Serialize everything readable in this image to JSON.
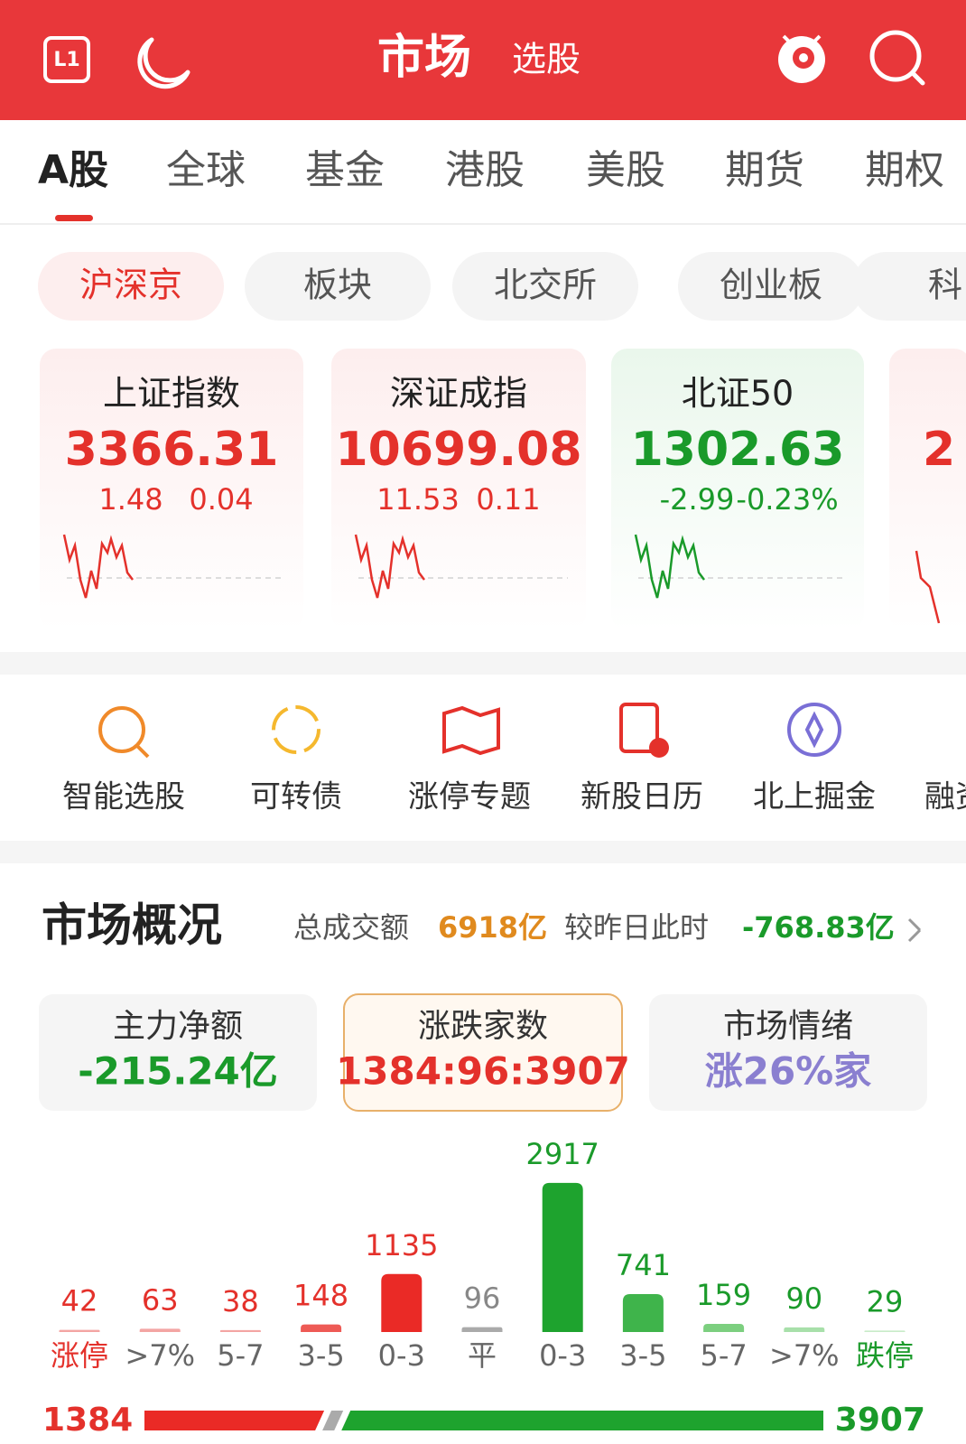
{
  "header": {
    "icon_label": "L1",
    "title": "市场",
    "subtitle": "选股"
  },
  "tabs": [
    "A股",
    "全球",
    "基金",
    "港股",
    "美股",
    "期货",
    "期权"
  ],
  "subtabs": [
    "沪深京",
    "板块",
    "北交所",
    "创业板",
    "科"
  ],
  "indices": [
    {
      "name": "上证指数",
      "value": "3366.31",
      "change": "1.48",
      "pct": "0.04"
    },
    {
      "name": "深证成指",
      "value": "10699.08",
      "change": "11.53",
      "pct": "0.11"
    },
    {
      "name": "北证50",
      "value": "1302.63",
      "change": "-2.99",
      "pct": "-0.23%"
    },
    {
      "value": "2"
    }
  ],
  "shortcuts": [
    "智能选股",
    "可转债",
    "涨停专题",
    "新股日历",
    "北上掘金",
    "融资"
  ],
  "overview": {
    "title": "市场概况",
    "turnover_label": "总成交额",
    "turnover": "6918亿",
    "compare_label": "较昨日此时",
    "compare": "-768.83亿",
    "cards": [
      {
        "title": "主力净额",
        "value": "-215.24亿"
      },
      {
        "title": "涨跌家数",
        "value": "1384:96:3907"
      },
      {
        "title": "市场情绪",
        "value": "涨26%家"
      }
    ]
  },
  "chart_data": {
    "type": "bar",
    "categories": [
      "涨停",
      ">7%",
      "5-7",
      "3-5",
      "0-3",
      "平",
      "0-3",
      "3-5",
      "5-7",
      ">7%",
      "跌停"
    ],
    "values": [
      42,
      63,
      38,
      148,
      1135,
      96,
      2917,
      741,
      159,
      90,
      29
    ],
    "colors": [
      "#f3a5a3",
      "#f3a5a3",
      "#f3a5a3",
      "#ee5a55",
      "#ea2a26",
      "#aaaaaa",
      "#1ea32e",
      "#3fb44b",
      "#7ccf7f",
      "#a8e0aa",
      "#c8ebc8"
    ],
    "value_colors": [
      "#e4312b",
      "#e4312b",
      "#e4312b",
      "#e4312b",
      "#e4312b",
      "#888888",
      "#1a9a2a",
      "#1a9a2a",
      "#1a9a2a",
      "#1a9a2a",
      "#1a9a2a"
    ],
    "label_colors": [
      "#e4312b",
      "#666666",
      "#666666",
      "#666666",
      "#666666",
      "#666666",
      "#666666",
      "#666666",
      "#666666",
      "#666666",
      "#1a9a2a"
    ]
  },
  "ratio_bar": {
    "up": 1384,
    "down": 3907
  }
}
